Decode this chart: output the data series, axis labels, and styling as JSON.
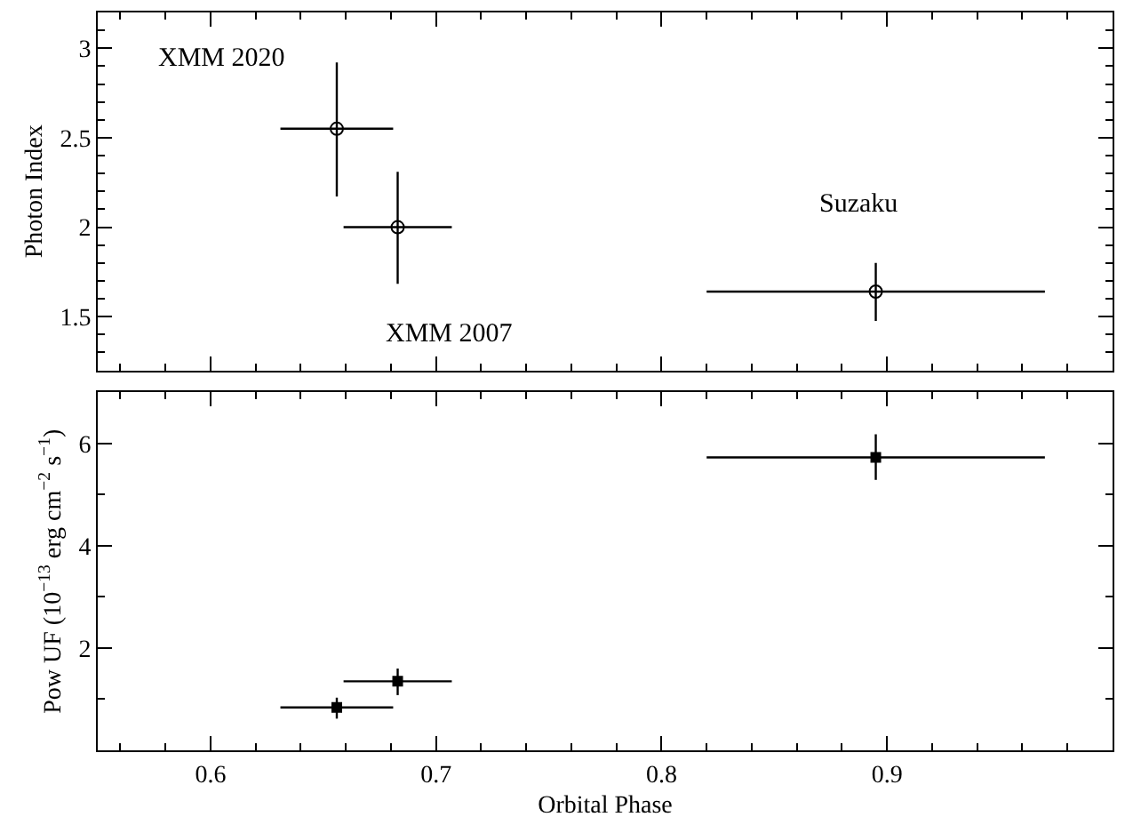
{
  "chart_data": [
    {
      "type": "scatter",
      "ylabel": "Photon Index",
      "xlim": [
        0.55,
        1.0
      ],
      "ylim": [
        1.2,
        3.2
      ],
      "xticks": [
        {
          "value": 0.56,
          "label": null
        },
        {
          "value": 0.58,
          "label": null
        },
        0.6,
        {
          "value": 0.62,
          "label": null
        },
        {
          "value": 0.64,
          "label": null
        },
        {
          "value": 0.66,
          "label": null
        },
        {
          "value": 0.68,
          "label": null
        },
        0.7,
        {
          "value": 0.72,
          "label": null
        },
        {
          "value": 0.74,
          "label": null
        },
        {
          "value": 0.76,
          "label": null
        },
        {
          "value": 0.78,
          "label": null
        },
        0.8,
        {
          "value": 0.82,
          "label": null
        },
        {
          "value": 0.84,
          "label": null
        },
        {
          "value": 0.86,
          "label": null
        },
        {
          "value": 0.88,
          "label": null
        },
        0.9,
        {
          "value": 0.92,
          "label": null
        },
        {
          "value": 0.94,
          "label": null
        },
        {
          "value": 0.96,
          "label": null
        },
        {
          "value": 0.98,
          "label": null
        }
      ],
      "yticks": [
        {
          "value": 1.3,
          "label": null
        },
        {
          "value": 1.4,
          "label": null
        },
        1.5,
        {
          "value": 1.6,
          "label": null
        },
        {
          "value": 1.7,
          "label": null
        },
        {
          "value": 1.8,
          "label": null
        },
        {
          "value": 1.9,
          "label": null
        },
        2,
        {
          "value": 2.1,
          "label": null
        },
        {
          "value": 2.2,
          "label": null
        },
        {
          "value": 2.3,
          "label": null
        },
        {
          "value": 2.4,
          "label": null
        },
        2.5,
        {
          "value": 2.6,
          "label": null
        },
        {
          "value": 2.7,
          "label": null
        },
        {
          "value": 2.8,
          "label": null
        },
        {
          "value": 2.9,
          "label": null
        },
        3,
        {
          "value": 3.1,
          "label": null
        }
      ],
      "tick_labels": "y",
      "marker": "circle",
      "series": [
        {
          "color": "#000000",
          "x": [
            0.656,
            0.683,
            0.895
          ],
          "values": [
            2.55,
            2.0,
            1.64
          ],
          "xerrors": [
            0.025,
            0.024,
            0.075
          ],
          "errors": [
            [
              2.172,
              2.92
            ],
            [
              1.684,
              2.31
            ],
            [
              1.476,
              1.8
            ]
          ]
        }
      ],
      "annotations": [
        "XMM 2020",
        "XMM 2007",
        "Suzaku"
      ]
    },
    {
      "type": "scatter",
      "xlabel": "Orbital Phase",
      "ylabel": "Pow UF (10$^{−13}$ erg cm$^{−2}$ s$^{−1}$)",
      "xlim": [
        0.55,
        1.0
      ],
      "ylim": [
        0,
        7
      ],
      "xticks": [
        {
          "value": 0.56,
          "label": null
        },
        {
          "value": 0.58,
          "label": null
        },
        0.6,
        {
          "value": 0.62,
          "label": null
        },
        {
          "value": 0.64,
          "label": null
        },
        {
          "value": 0.66,
          "label": null
        },
        {
          "value": 0.68,
          "label": null
        },
        0.7,
        {
          "value": 0.72,
          "label": null
        },
        {
          "value": 0.74,
          "label": null
        },
        {
          "value": 0.76,
          "label": null
        },
        {
          "value": 0.78,
          "label": null
        },
        0.8,
        {
          "value": 0.82,
          "label": null
        },
        {
          "value": 0.84,
          "label": null
        },
        {
          "value": 0.86,
          "label": null
        },
        {
          "value": 0.88,
          "label": null
        },
        0.9,
        {
          "value": 0.92,
          "label": null
        },
        {
          "value": 0.94,
          "label": null
        },
        {
          "value": 0.96,
          "label": null
        },
        {
          "value": 0.98,
          "label": null
        }
      ],
      "yticks": [
        {
          "value": 1,
          "label": null
        },
        2,
        {
          "value": 3,
          "label": null
        },
        4,
        {
          "value": 5,
          "label": null
        },
        6
      ],
      "marker": "square",
      "series": [
        {
          "color": "#000000",
          "x": [
            0.656,
            0.683,
            0.895
          ],
          "values": [
            0.84,
            1.35,
            5.73
          ],
          "xerrors": [
            0.025,
            0.024,
            0.075
          ],
          "errors": [
            [
              0.62,
              1.03
            ],
            [
              1.08,
              1.6
            ],
            [
              5.29,
              6.18
            ]
          ]
        }
      ]
    }
  ]
}
